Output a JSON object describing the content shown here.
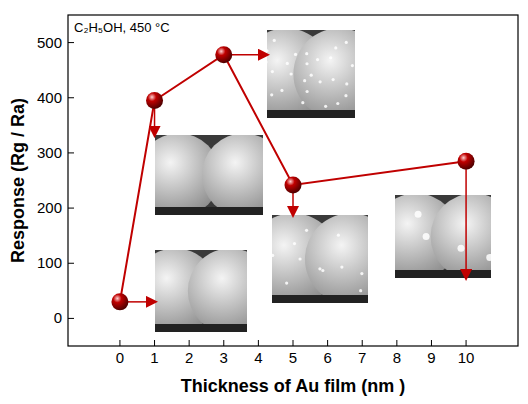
{
  "chart_data": {
    "type": "line",
    "annotation": "C₂H₅OH, 450 °C",
    "x_label": "Thickness of Au film (nm )",
    "y_label": "Response (Rg / Ra)",
    "x": [
      0,
      1,
      3,
      5,
      10
    ],
    "values": [
      30,
      395,
      478,
      242,
      285
    ],
    "color": "#c00000",
    "marker": "sphere",
    "line_style": "solid",
    "xlim": [
      -1.5,
      11.5
    ],
    "xticks": [
      0,
      1,
      2,
      3,
      4,
      5,
      6,
      7,
      8,
      9,
      10
    ],
    "ylim": [
      -50,
      550
    ],
    "yticks": [
      0,
      100,
      200,
      300,
      400,
      500
    ],
    "grid": false
  }
}
